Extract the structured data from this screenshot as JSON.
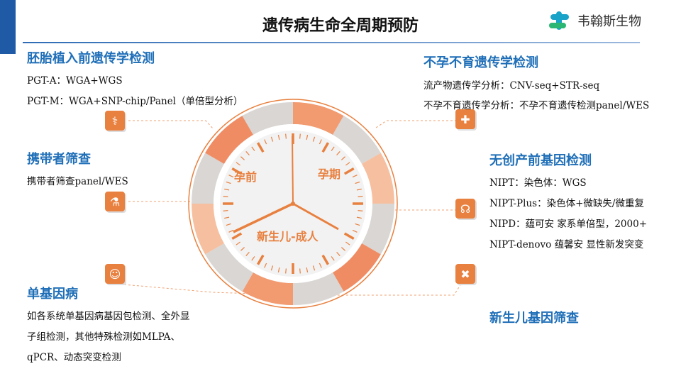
{
  "header": {
    "title": "遗传病生命全周期预防",
    "logo_text": "韦翰斯生物"
  },
  "sections": {
    "pgt": {
      "title": "胚胎植入前遗传学检测",
      "lines": [
        "PGT-A：WGA+WGS",
        "PGT-M：WGA+SNP-chip/Panel（单倍型分析）"
      ],
      "icon": "dna-icon"
    },
    "carrier": {
      "title": "携带者筛查",
      "lines": [
        "携带者筛查panel/WES"
      ],
      "icon": "flask-icon"
    },
    "monogenic": {
      "title": "单基因病",
      "lines": [
        "如各系统单基因病基因包检测、全外显",
        "子组检测，其他特殊检测如MLPA、",
        "qPCR、动态突变检测"
      ],
      "icon": "doctor-icon"
    },
    "infertility": {
      "title": "不孕不育遗传学检测",
      "lines": [
        "流产物遗传学分析：CNV-seq+STR-seq",
        "不孕不育遗传学分析：不孕不育遗传检测panel/WES"
      ],
      "icon": "medical-kit-icon"
    },
    "nipt": {
      "title": "无创产前基因检测",
      "lines": [
        "NIPT：染色体：WGS",
        "NIPT-Plus：染色体+微缺失/微重复",
        "NIPD：蕴可安 家系单倍型，2000+",
        "NIPT-denovo 蕴馨安 显性新发突变"
      ],
      "icon": "stethoscope-icon"
    },
    "newborn": {
      "title": "新生儿基因筛查",
      "icon": "bandage-icon"
    }
  },
  "clock": {
    "labels": {
      "pre": "孕前",
      "pregnancy": "孕期",
      "newborn": "新生儿-成人"
    },
    "accent": "#e8803f"
  }
}
